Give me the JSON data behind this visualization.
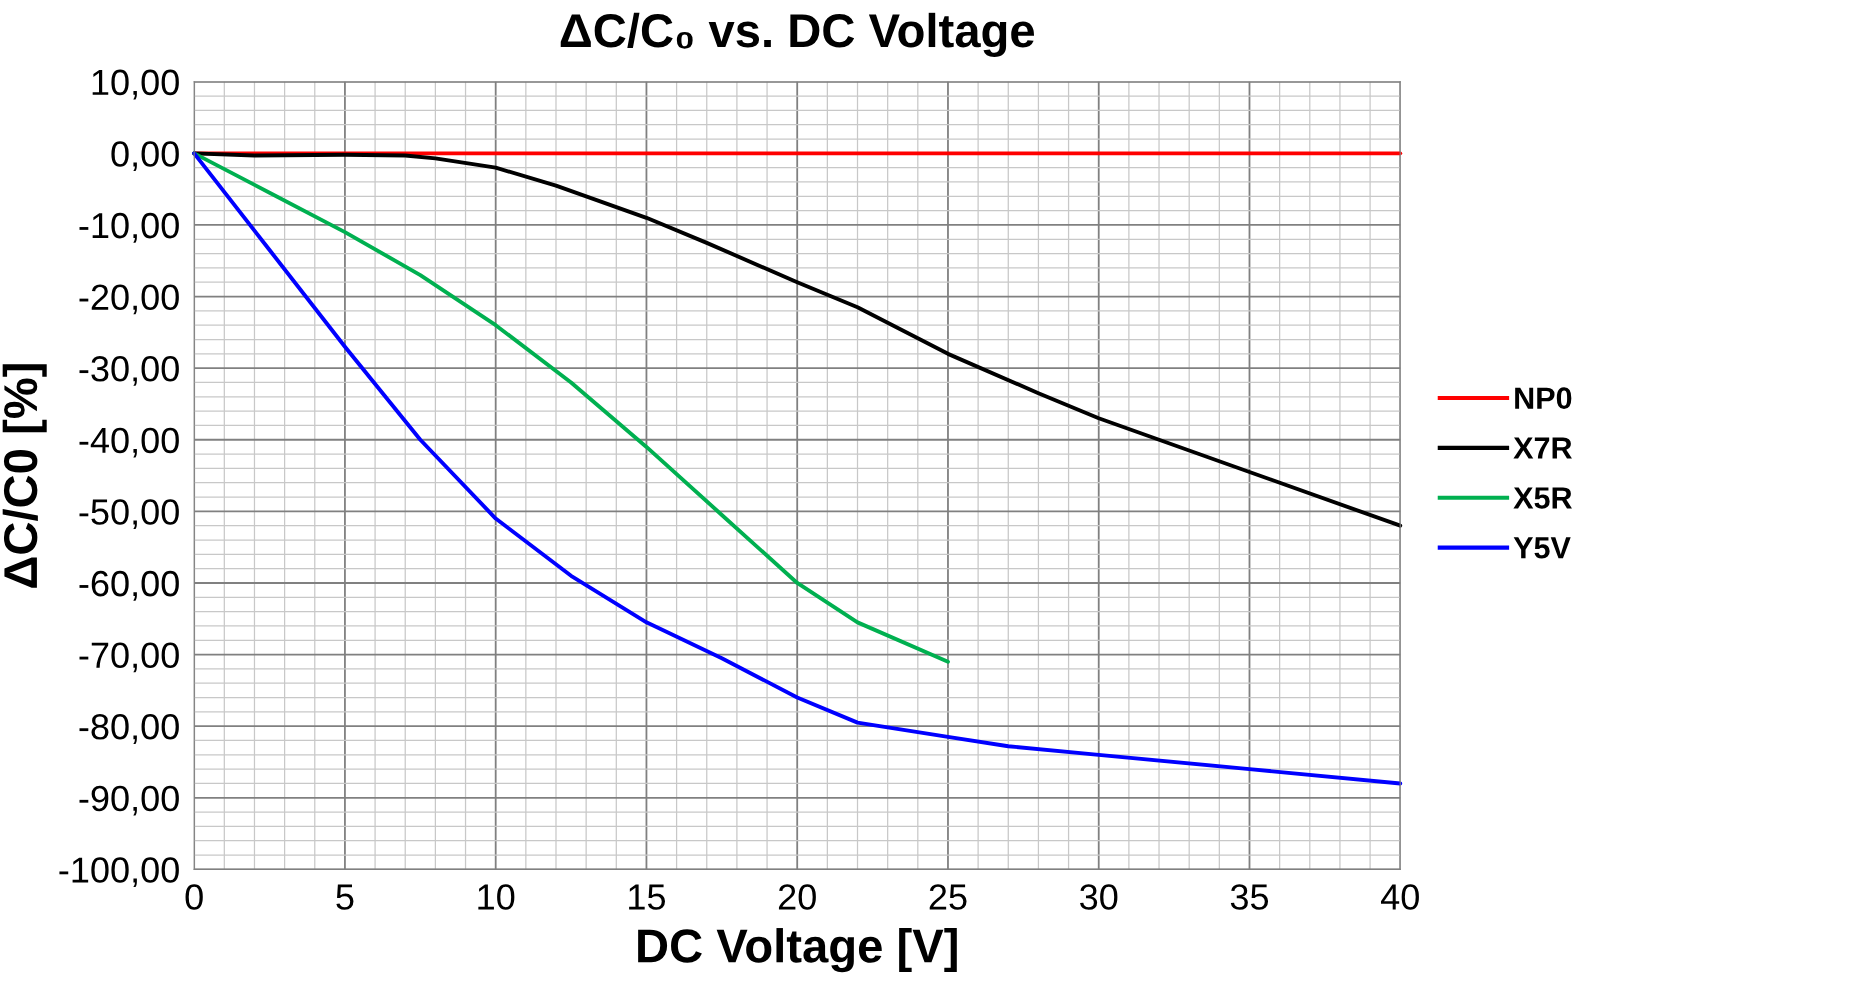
{
  "chart_data": {
    "type": "line",
    "title": "ΔC/C₀ vs. DC Voltage",
    "xlabel": "DC Voltage [V]",
    "ylabel": "ΔC/C0 [%]",
    "xlim": [
      0,
      40
    ],
    "xticks": [
      0,
      5,
      10,
      15,
      20,
      25,
      30,
      35,
      40
    ],
    "ylim": [
      -100,
      10
    ],
    "yticks": [
      {
        "value": 10,
        "label": "10,00"
      },
      {
        "value": 0,
        "label": "0,00"
      },
      {
        "value": -10,
        "label": "-10,00"
      },
      {
        "value": -20,
        "label": "-20,00"
      },
      {
        "value": -30,
        "label": "-30,00"
      },
      {
        "value": -40,
        "label": "-40,00"
      },
      {
        "value": -50,
        "label": "-50,00"
      },
      {
        "value": -60,
        "label": "-60,00"
      },
      {
        "value": -70,
        "label": "-70,00"
      },
      {
        "value": -80,
        "label": "-80,00"
      },
      {
        "value": -90,
        "label": "-90,00"
      },
      {
        "value": -100,
        "label": "-100,00"
      }
    ],
    "grid": true,
    "legend": "right",
    "marker": "none",
    "line_style": "solid",
    "series": [
      {
        "name": "NP0",
        "color": "#ff0000",
        "x": [
          0,
          40
        ],
        "values": [
          0,
          0
        ]
      },
      {
        "name": "X7R",
        "color": "#000000",
        "x": [
          0,
          2,
          5,
          7,
          8,
          10,
          12,
          15,
          17,
          20,
          22,
          25,
          28,
          30,
          35,
          40
        ],
        "values": [
          0,
          -0.3,
          -0.2,
          -0.3,
          -0.7,
          -2,
          -4.5,
          -9,
          -12.5,
          -18,
          -21.5,
          -28,
          -33.5,
          -37,
          -44.5,
          -52
        ]
      },
      {
        "name": "X5R",
        "color": "#00b050",
        "x": [
          0,
          2.5,
          5,
          7.5,
          10,
          12.5,
          15,
          17.5,
          20,
          22,
          25
        ],
        "values": [
          0,
          -5.5,
          -11,
          -17,
          -24,
          -32,
          -41,
          -50.5,
          -60,
          -65.5,
          -71
        ]
      },
      {
        "name": "Y5V",
        "color": "#0000ff",
        "x": [
          0,
          2.5,
          5,
          7.5,
          10,
          12.5,
          15,
          17.5,
          20,
          22,
          25,
          27,
          30,
          35,
          40
        ],
        "values": [
          0,
          -13.5,
          -27,
          -40,
          -51,
          -59,
          -65.5,
          -70.5,
          -76,
          -79.5,
          -81.5,
          -82.8,
          -84,
          -86,
          -88
        ]
      }
    ]
  }
}
